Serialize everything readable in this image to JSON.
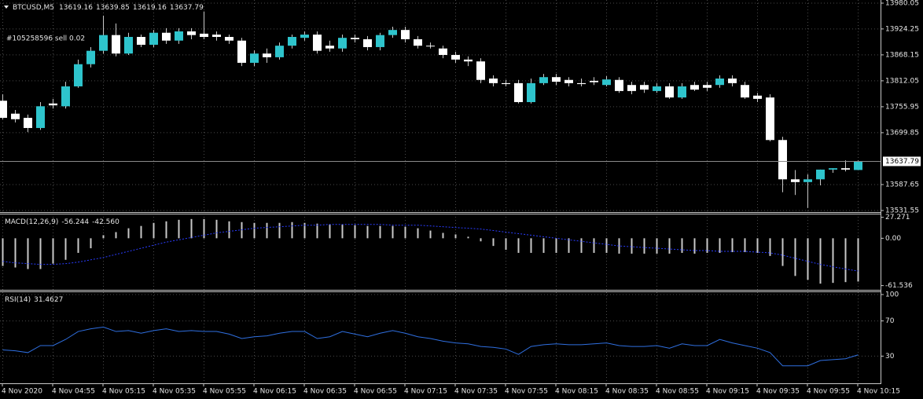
{
  "chart_data": [
    {
      "type": "candlestick",
      "title": "BTCUSD,M5",
      "annotation": "#105258596 sell 0.02",
      "categories": [
        "4 Nov 2020",
        null,
        null,
        null,
        "4 Nov 04:55",
        null,
        null,
        null,
        "4 Nov 05:15",
        null,
        null,
        null,
        "4 Nov 05:35",
        null,
        null,
        null,
        "4 Nov 05:55",
        null,
        null,
        null,
        "4 Nov 06:15",
        null,
        null,
        null,
        "4 Nov 06:35",
        null,
        null,
        null,
        "4 Nov 06:55",
        null,
        null,
        null,
        "4 Nov 07:15",
        null,
        null,
        null,
        "4 Nov 07:35",
        null,
        null,
        null,
        "4 Nov 07:55",
        null,
        null,
        null,
        "4 Nov 08:15",
        null,
        null,
        null,
        "4 Nov 08:35",
        null,
        null,
        null,
        "4 Nov 08:55",
        null,
        null,
        null,
        "4 Nov 09:15",
        null,
        null,
        null,
        "4 Nov 09:35",
        null,
        null,
        null,
        "4 Nov 09:55",
        null,
        null,
        null,
        "4 Nov 10:15"
      ],
      "open": [
        13769,
        13741,
        13732,
        13710,
        13763,
        13757,
        13800,
        13848,
        13877,
        13911,
        13871,
        13907,
        13890,
        13916,
        13899,
        13919,
        13914,
        13912,
        13907,
        13899,
        13851,
        13871,
        13863,
        13888,
        13905,
        13912,
        13888,
        13882,
        13905,
        13902,
        13885,
        13911,
        13922,
        13902,
        13888,
        13882,
        13868,
        13858,
        13854,
        13817,
        13807,
        13807,
        13766,
        13807,
        13820,
        13814,
        13807,
        13812,
        13803,
        13814,
        13803,
        13803,
        13790,
        13800,
        13776,
        13803,
        13803,
        13803,
        13817,
        13803,
        13780,
        13776,
        13684,
        13599,
        13593,
        13599,
        13620,
        13623,
        13619.16
      ],
      "high": [
        13783,
        13749,
        13739,
        13766,
        13773,
        13810,
        13858,
        13885,
        13953,
        13936,
        13916,
        13912,
        13922,
        13926,
        13926,
        13926,
        13962,
        13919,
        13912,
        13905,
        13878,
        13882,
        13895,
        13912,
        13919,
        13919,
        13899,
        13912,
        13912,
        13909,
        13916,
        13929,
        13929,
        13909,
        13895,
        13888,
        13875,
        13865,
        13861,
        13824,
        13814,
        13814,
        13817,
        13827,
        13827,
        13820,
        13817,
        13820,
        13822,
        13820,
        13810,
        13810,
        13807,
        13807,
        13807,
        13810,
        13810,
        13824,
        13824,
        13810,
        13786,
        13783,
        13691,
        13619,
        13610,
        13620,
        13623,
        13640,
        13639.85
      ],
      "low": [
        13729,
        13722,
        13701,
        13706,
        13752,
        13752,
        13797,
        13841,
        13871,
        13865,
        13868,
        13885,
        13885,
        13892,
        13892,
        13902,
        13902,
        13899,
        13892,
        13844,
        13844,
        13851,
        13858,
        13882,
        13899,
        13871,
        13875,
        13875,
        13895,
        13878,
        13878,
        13905,
        13895,
        13882,
        13882,
        13861,
        13851,
        13844,
        13807,
        13800,
        13800,
        13763,
        13763,
        13803,
        13803,
        13800,
        13800,
        13803,
        13800,
        13786,
        13783,
        13786,
        13786,
        13773,
        13773,
        13790,
        13790,
        13797,
        13800,
        13773,
        13766,
        13681,
        13571,
        13565,
        13537,
        13586,
        13613,
        13616,
        13619.16
      ],
      "close": [
        13732,
        13729,
        13710,
        13757,
        13759,
        13800,
        13848,
        13877,
        13911,
        13871,
        13907,
        13890,
        13916,
        13899,
        13919,
        13911,
        13907,
        13907,
        13899,
        13851,
        13871,
        13863,
        13888,
        13907,
        13912,
        13877,
        13882,
        13905,
        13902,
        13885,
        13911,
        13922,
        13902,
        13888,
        13887,
        13868,
        13858,
        13854,
        13814,
        13807,
        13805,
        13766,
        13807,
        13820,
        13810,
        13807,
        13805,
        13809,
        13815,
        13790,
        13790,
        13793,
        13800,
        13776,
        13800,
        13793,
        13797,
        13817,
        13807,
        13776,
        13773,
        13684,
        13599,
        13593,
        13599,
        13620,
        13623,
        13620,
        13637.79
      ],
      "up_color": "#2ec4cc",
      "down_color": "#ffffff",
      "wick_color": "#c8c8c8",
      "ylim": [
        13528.15,
        13986.85
      ],
      "yticks": [
        13980.05,
        13924.25,
        13868.15,
        13812.05,
        13755.95,
        13699.85,
        13587.65,
        13531.55
      ],
      "grid": true
    },
    {
      "type": "macd",
      "title": "MACD(12,26,9)",
      "series": [
        {
          "style": "histogram",
          "color": "#c8c8c8",
          "values": [
            -36,
            -38,
            -40,
            -40,
            -33,
            -28,
            -19,
            -13,
            4,
            8,
            13,
            16,
            20,
            22,
            24,
            25,
            25,
            24,
            22,
            21,
            20,
            20,
            20,
            21,
            20,
            19,
            18,
            18,
            17,
            16,
            16,
            16,
            15,
            13,
            10,
            7,
            5,
            2,
            -4,
            -10,
            -15,
            -19,
            -19,
            -19,
            -19,
            -19,
            -19,
            -19,
            -19,
            -20,
            -20,
            -20,
            -20,
            -20,
            -19,
            -20,
            -19,
            -19,
            -18,
            -18,
            -19,
            -23,
            -36,
            -49,
            -54,
            -59,
            -58,
            -57,
            -56.244
          ]
        },
        {
          "style": "dotted",
          "color": "#2a3cff",
          "values": [
            -30,
            -32,
            -33,
            -34,
            -34,
            -33,
            -31,
            -28,
            -25,
            -21,
            -17,
            -13,
            -9,
            -5,
            -2,
            1,
            4,
            7,
            9,
            11,
            13,
            14,
            15,
            16,
            17,
            17,
            18,
            18,
            18,
            18,
            18,
            17,
            17,
            17,
            16,
            15,
            14,
            13,
            12,
            10,
            8,
            6,
            4,
            2,
            0,
            -2,
            -4,
            -6,
            -8,
            -10,
            -11,
            -12,
            -13,
            -14,
            -15,
            -16,
            -16,
            -17,
            -17,
            -17,
            -18,
            -19,
            -22,
            -26,
            -30,
            -34,
            -37,
            -40,
            -42.56
          ],
          "value_labels": [
            null,
            null,
            null,
            null,
            null,
            null,
            null,
            null,
            null,
            null,
            null,
            null,
            null,
            null,
            null,
            null,
            null,
            null,
            null,
            null,
            null,
            null,
            null,
            null,
            null,
            null,
            null,
            null,
            null,
            null,
            null,
            null,
            null,
            null,
            null,
            null,
            null,
            null,
            null,
            null,
            null,
            null,
            null,
            null,
            null,
            null,
            null,
            null,
            null,
            null,
            null,
            null,
            null,
            null,
            null,
            null,
            null,
            null,
            null,
            null,
            null,
            null,
            null,
            null,
            null,
            null,
            null,
            null,
            "-42.560"
          ]
        }
      ],
      "ylim": [
        -66,
        32
      ],
      "yticks": [
        27.271,
        {
          "value": 0,
          "label": "0.00"
        },
        -61.536
      ]
    },
    {
      "type": "line",
      "title": "RSI(14)",
      "color": "#2f6fe0",
      "values": [
        37,
        36,
        34,
        42,
        42,
        49,
        58,
        61,
        63,
        58,
        59,
        56,
        59,
        61,
        58,
        59,
        58,
        58,
        55,
        50,
        52,
        53,
        56,
        58,
        58,
        50,
        52,
        58,
        55,
        52,
        56,
        59,
        56,
        52,
        50,
        47,
        45,
        44,
        41,
        40,
        38,
        32,
        41,
        43,
        44,
        43,
        43,
        44,
        45,
        42,
        41,
        41,
        42,
        39,
        44,
        42,
        42,
        49,
        45,
        42,
        39,
        34,
        19,
        19,
        19,
        25,
        26,
        27,
        31.4627
      ],
      "ylim": [
        0,
        100
      ],
      "yticks": [
        100,
        70,
        30
      ],
      "grid": true
    }
  ]
}
